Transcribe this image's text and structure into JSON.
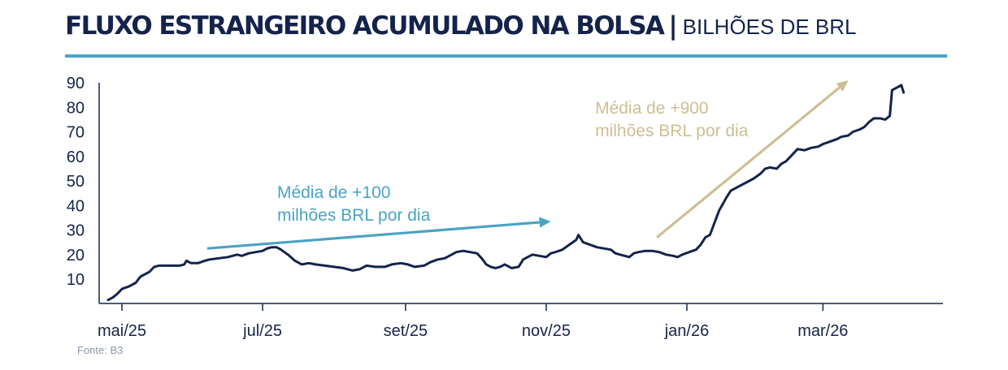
{
  "header": {
    "title": "FLUXO ESTRANGEIRO ACUMULADO NA BOLSA",
    "separator": "|",
    "subtitle": "BILHÕES DE BRL"
  },
  "footer": {
    "source": "Fonte: B3"
  },
  "colors": {
    "line": "#14234b",
    "accent_blue": "#4aa3c4",
    "accent_gold": "#cdbf92",
    "axis": "#14234b"
  },
  "chart_data": {
    "type": "line",
    "title": "FLUXO ESTRANGEIRO ACUMULADO NA BOLSA | BILHÕES DE BRL",
    "xlabel": "",
    "ylabel": "",
    "ylim": [
      0,
      90
    ],
    "yticks": [
      10,
      20,
      30,
      40,
      50,
      60,
      70,
      80,
      90
    ],
    "x_range_days": [
      -6,
      339
    ],
    "x_ticks": [
      {
        "day": 0,
        "label": "mai/25"
      },
      {
        "day": 61,
        "label": "jul/25"
      },
      {
        "day": 123,
        "label": "set/25"
      },
      {
        "day": 184,
        "label": "nov/25"
      },
      {
        "day": 245,
        "label": "jan/26"
      },
      {
        "day": 304,
        "label": "mar/26"
      }
    ],
    "series": [
      {
        "name": "Fluxo estrangeiro acumulado",
        "points": [
          [
            -6,
            1.5
          ],
          [
            -4,
            2.5
          ],
          [
            -2,
            4
          ],
          [
            0,
            6
          ],
          [
            3,
            7
          ],
          [
            6,
            8.5
          ],
          [
            8,
            11
          ],
          [
            10,
            12
          ],
          [
            12,
            13
          ],
          [
            14,
            15
          ],
          [
            16,
            15.5
          ],
          [
            20,
            15.5
          ],
          [
            25,
            15.5
          ],
          [
            27,
            16
          ],
          [
            28,
            17.5
          ],
          [
            30,
            16.5
          ],
          [
            33,
            16.5
          ],
          [
            36,
            17.5
          ],
          [
            38,
            18
          ],
          [
            42,
            18.5
          ],
          [
            46,
            19
          ],
          [
            50,
            20
          ],
          [
            52,
            19.5
          ],
          [
            55,
            20.5
          ],
          [
            58,
            21
          ],
          [
            61,
            21.5
          ],
          [
            63,
            22.5
          ],
          [
            65,
            23
          ],
          [
            67,
            23
          ],
          [
            69,
            22
          ],
          [
            72,
            20
          ],
          [
            75,
            17.5
          ],
          [
            78,
            16
          ],
          [
            81,
            16.5
          ],
          [
            84,
            16
          ],
          [
            88,
            15.5
          ],
          [
            92,
            15
          ],
          [
            96,
            14.5
          ],
          [
            100,
            13.5
          ],
          [
            103,
            14
          ],
          [
            106,
            15.5
          ],
          [
            110,
            15
          ],
          [
            114,
            15
          ],
          [
            117,
            16
          ],
          [
            121,
            16.5
          ],
          [
            124,
            16
          ],
          [
            127,
            15
          ],
          [
            131,
            15.5
          ],
          [
            134,
            17
          ],
          [
            137,
            18
          ],
          [
            140,
            18.5
          ],
          [
            143,
            20
          ],
          [
            145,
            21
          ],
          [
            148,
            21.5
          ],
          [
            151,
            21
          ],
          [
            154,
            20.5
          ],
          [
            156,
            18.5
          ],
          [
            158,
            16
          ],
          [
            160,
            15
          ],
          [
            162,
            14.5
          ],
          [
            164,
            15
          ],
          [
            166,
            16
          ],
          [
            169,
            14.5
          ],
          [
            172,
            15
          ],
          [
            174,
            18
          ],
          [
            176,
            19
          ],
          [
            178,
            20
          ],
          [
            181,
            19.5
          ],
          [
            184,
            19
          ],
          [
            186,
            20.5
          ],
          [
            188,
            21
          ],
          [
            191,
            22
          ],
          [
            194,
            24
          ],
          [
            197,
            26
          ],
          [
            198,
            28
          ],
          [
            200,
            25
          ],
          [
            203,
            24
          ],
          [
            206,
            23
          ],
          [
            209,
            22.5
          ],
          [
            212,
            22
          ],
          [
            214,
            20.5
          ],
          [
            216,
            20
          ],
          [
            218,
            19.5
          ],
          [
            220,
            19
          ],
          [
            222,
            20.5
          ],
          [
            224,
            21
          ],
          [
            227,
            21.5
          ],
          [
            230,
            21.5
          ],
          [
            233,
            21
          ],
          [
            236,
            20
          ],
          [
            239,
            19.5
          ],
          [
            241,
            19
          ],
          [
            243,
            20
          ],
          [
            246,
            21
          ],
          [
            249,
            22
          ],
          [
            251,
            24
          ],
          [
            253,
            27
          ],
          [
            255,
            28
          ],
          [
            257,
            33
          ],
          [
            259,
            38
          ],
          [
            262,
            43
          ],
          [
            264,
            46
          ],
          [
            266,
            47
          ],
          [
            268,
            48
          ],
          [
            270,
            49
          ],
          [
            272,
            50
          ],
          [
            274,
            51
          ],
          [
            277,
            53
          ],
          [
            279,
            55
          ],
          [
            281,
            55.5
          ],
          [
            284,
            55
          ],
          [
            286,
            57
          ],
          [
            288,
            58
          ],
          [
            290,
            60
          ],
          [
            292,
            62
          ],
          [
            293,
            63
          ],
          [
            296,
            62.5
          ],
          [
            299,
            63.5
          ],
          [
            302,
            64
          ],
          [
            304,
            65
          ],
          [
            307,
            66
          ],
          [
            310,
            67
          ],
          [
            312,
            68
          ],
          [
            315,
            68.5
          ],
          [
            317,
            70
          ],
          [
            320,
            71
          ],
          [
            322,
            72
          ],
          [
            324,
            74
          ],
          [
            326,
            75.5
          ],
          [
            329,
            75.5
          ],
          [
            331,
            75
          ],
          [
            333,
            76.5
          ],
          [
            334,
            87
          ],
          [
            336,
            88
          ],
          [
            337,
            88.5
          ],
          [
            338,
            89
          ],
          [
            339,
            86
          ]
        ]
      }
    ],
    "annotations": [
      {
        "text_line1": "Média de +100",
        "text_line2": "milhões BRL por dia",
        "color": "#4aa3c4",
        "arrow_from": [
          37,
          22.5
        ],
        "arrow_to": [
          186,
          33.5
        ]
      },
      {
        "text_line1": "Média de +900",
        "text_line2": "milhões BRL por dia",
        "color": "#cdbf92",
        "arrow_from": [
          232,
          27
        ],
        "arrow_to": [
          315,
          91
        ]
      }
    ]
  }
}
